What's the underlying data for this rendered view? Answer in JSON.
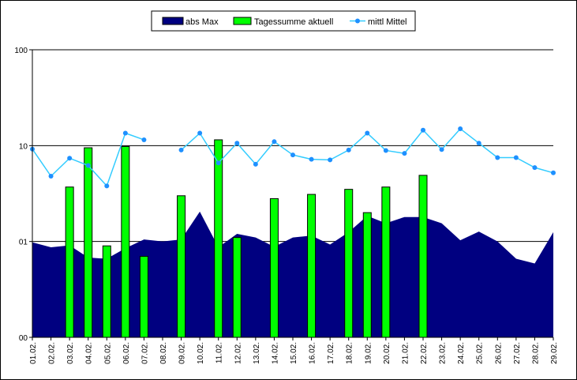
{
  "chart_data": {
    "type": "area",
    "y_scale": "log",
    "ylim": [
      0.1,
      100
    ],
    "y_tick_labels": [
      "100",
      "10",
      "01",
      "00"
    ],
    "y_tick_values": [
      100,
      10,
      1,
      0.1
    ],
    "grid": "horizontal",
    "legend_position": "top-center",
    "categories": [
      "01.02.",
      "02.02.",
      "03.02.",
      "04.02.",
      "05.02.",
      "06.02.",
      "07.02.",
      "08.02.",
      "09.02.",
      "10.02.",
      "11.02.",
      "12.02.",
      "13.02.",
      "14.02.",
      "15.02.",
      "16.02.",
      "17.02.",
      "18.02.",
      "19.02.",
      "20.02.",
      "21.02.",
      "22.02.",
      "23.02.",
      "24.02.",
      "25.02.",
      "26.02.",
      "27.02.",
      "28.02.",
      "29.02."
    ],
    "series": [
      {
        "name": "abs Max",
        "type": "area",
        "color": "#000080",
        "values": [
          0.98,
          0.87,
          0.91,
          0.68,
          0.66,
          0.85,
          1.05,
          1.0,
          1.05,
          2.05,
          0.87,
          1.2,
          1.1,
          0.88,
          1.1,
          1.15,
          0.93,
          1.25,
          1.85,
          1.55,
          1.8,
          1.8,
          1.55,
          1.03,
          1.27,
          1.0,
          0.66,
          0.59,
          1.25
        ]
      },
      {
        "name": "Tagessumme aktuell",
        "type": "bar",
        "color": "#00FF00",
        "values": [
          null,
          null,
          3.7,
          9.5,
          0.9,
          9.8,
          0.7,
          null,
          3.0,
          null,
          11.5,
          1.1,
          null,
          2.8,
          null,
          3.1,
          null,
          3.5,
          2.0,
          3.7,
          null,
          4.9,
          null,
          null,
          null,
          null,
          null,
          null,
          null
        ]
      },
      {
        "name": "mittl Mittel",
        "type": "line",
        "color": "#33CCFF",
        "values": [
          9.2,
          4.8,
          7.4,
          6.2,
          3.8,
          13.5,
          11.5,
          null,
          9.0,
          13.5,
          6.6,
          10.6,
          6.4,
          11.0,
          8.0,
          7.2,
          7.1,
          9.0,
          13.5,
          8.9,
          8.3,
          14.5,
          9.1,
          15.0,
          10.6,
          7.5,
          7.5,
          5.9,
          5.2
        ]
      }
    ]
  }
}
